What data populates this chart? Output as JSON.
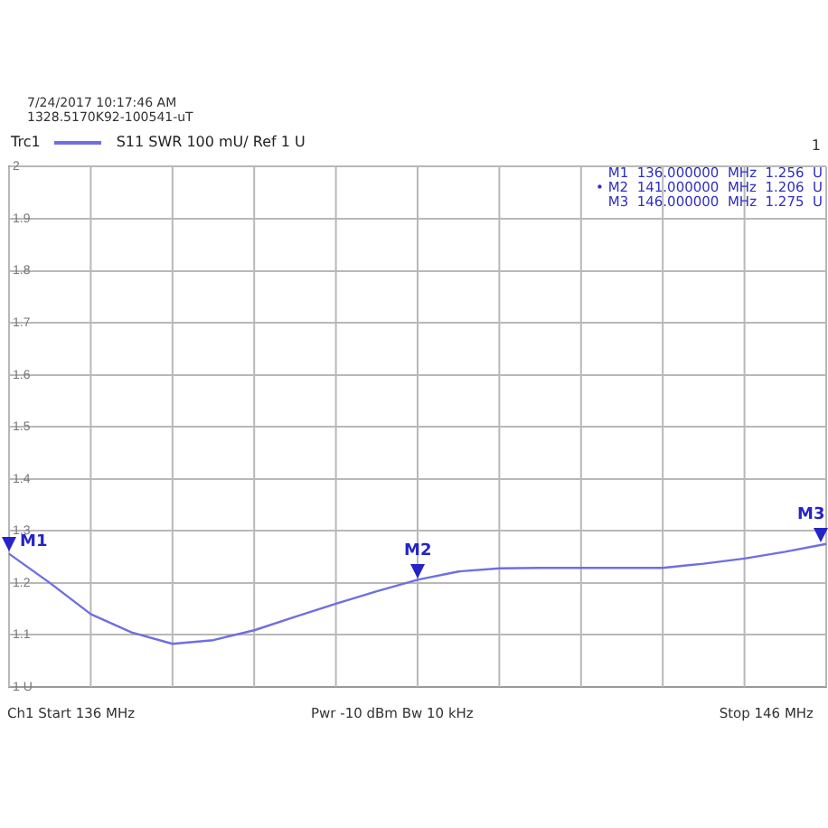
{
  "chart_data": {
    "type": "line",
    "subtitle": "S11  SWR  100 mU/ Ref 1 U",
    "categories": [
      null,
      null,
      null,
      null,
      null,
      null,
      null,
      null,
      null,
      null,
      null,
      null,
      null,
      null,
      null,
      null,
      null,
      null,
      null,
      null,
      null
    ],
    "series": [
      {
        "name": "Trc1",
        "color": "#6f6fe0",
        "values": [
          1.256,
          1.2,
          1.14,
          1.105,
          1.083,
          1.09,
          1.109,
          1.135,
          1.16,
          1.184,
          1.206,
          1.222,
          1.228,
          1.229,
          1.229,
          1.229,
          1.229,
          1.237,
          1.247,
          1.26,
          1.275
        ]
      }
    ],
    "ylim": [
      1,
      2
    ],
    "yticks": [
      {
        "value": 1,
        "label": "1 U"
      },
      1.1,
      1.2,
      1.3,
      1.4,
      1.5,
      1.6,
      1.7,
      1.8,
      1.9,
      2
    ],
    "tick_labels": "y",
    "grid": true,
    "legend": "top left",
    "marker": "none",
    "line_style": "solid",
    "annotations": [
      "7/24/2017 10:17:46 AM",
      "1328.5170K92-100541-uT",
      "1",
      "M1  136.000000  MHz  1.256  U",
      "• M2  141.000000  MHz  1.206  U",
      "M3  146.000000  MHz  1.275  U",
      "Ch1  Start  136 MHz",
      "Pwr  -10 dBm  Bw  10 kHz",
      "Stop  146 MHz",
      "M1",
      "M2",
      "M3"
    ]
  }
}
